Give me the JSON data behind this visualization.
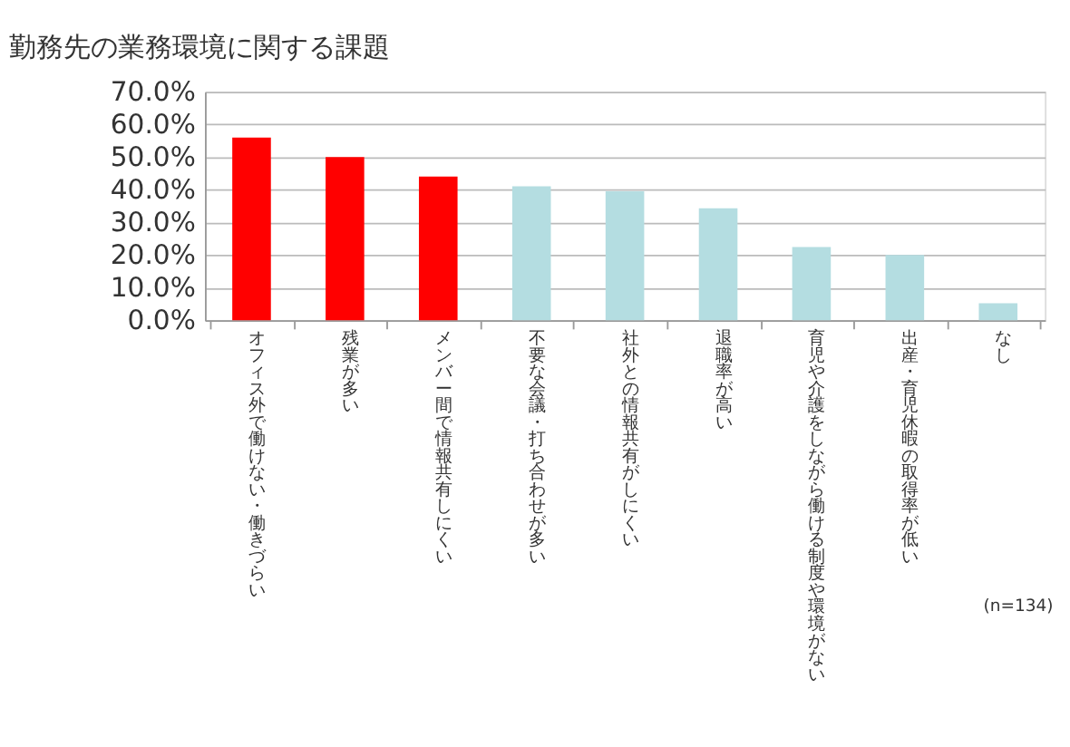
{
  "chart_data": {
    "type": "bar",
    "title": "勤務先の業務環境に関する課題",
    "categories": [
      "オフィス外で働けない・働きづらい",
      "残業が多い",
      "メンバー間で情報共有しにくい",
      "不要な会議・打ち合わせが多い",
      "社外との情報共有がしにくい",
      "退職率が高い",
      "育児や介護をしながら働ける制度や環境がない",
      "出産・育児休暇の取得率が低い",
      "なし"
    ],
    "values": [
      56,
      50,
      44,
      41,
      39.5,
      34.3,
      22.4,
      20,
      5.2
    ],
    "colors": [
      "#ff0000",
      "#ff0000",
      "#ff0000",
      "#b4dde1",
      "#b4dde1",
      "#b4dde1",
      "#b4dde1",
      "#b4dde1",
      "#b4dde1"
    ],
    "ylim": [
      0,
      70
    ],
    "yticks": [
      {
        "value": 0,
        "label": "0.0%"
      },
      {
        "value": 10,
        "label": "10.0%"
      },
      {
        "value": 20,
        "label": "20.0%"
      },
      {
        "value": 30,
        "label": "30.0%"
      },
      {
        "value": 40,
        "label": "40.0%"
      },
      {
        "value": 50,
        "label": "50.0%"
      },
      {
        "value": 60,
        "label": "60.0%"
      },
      {
        "value": 70,
        "label": "70.0%"
      }
    ],
    "grid": "y",
    "annotations": [
      "(n=134)"
    ]
  }
}
